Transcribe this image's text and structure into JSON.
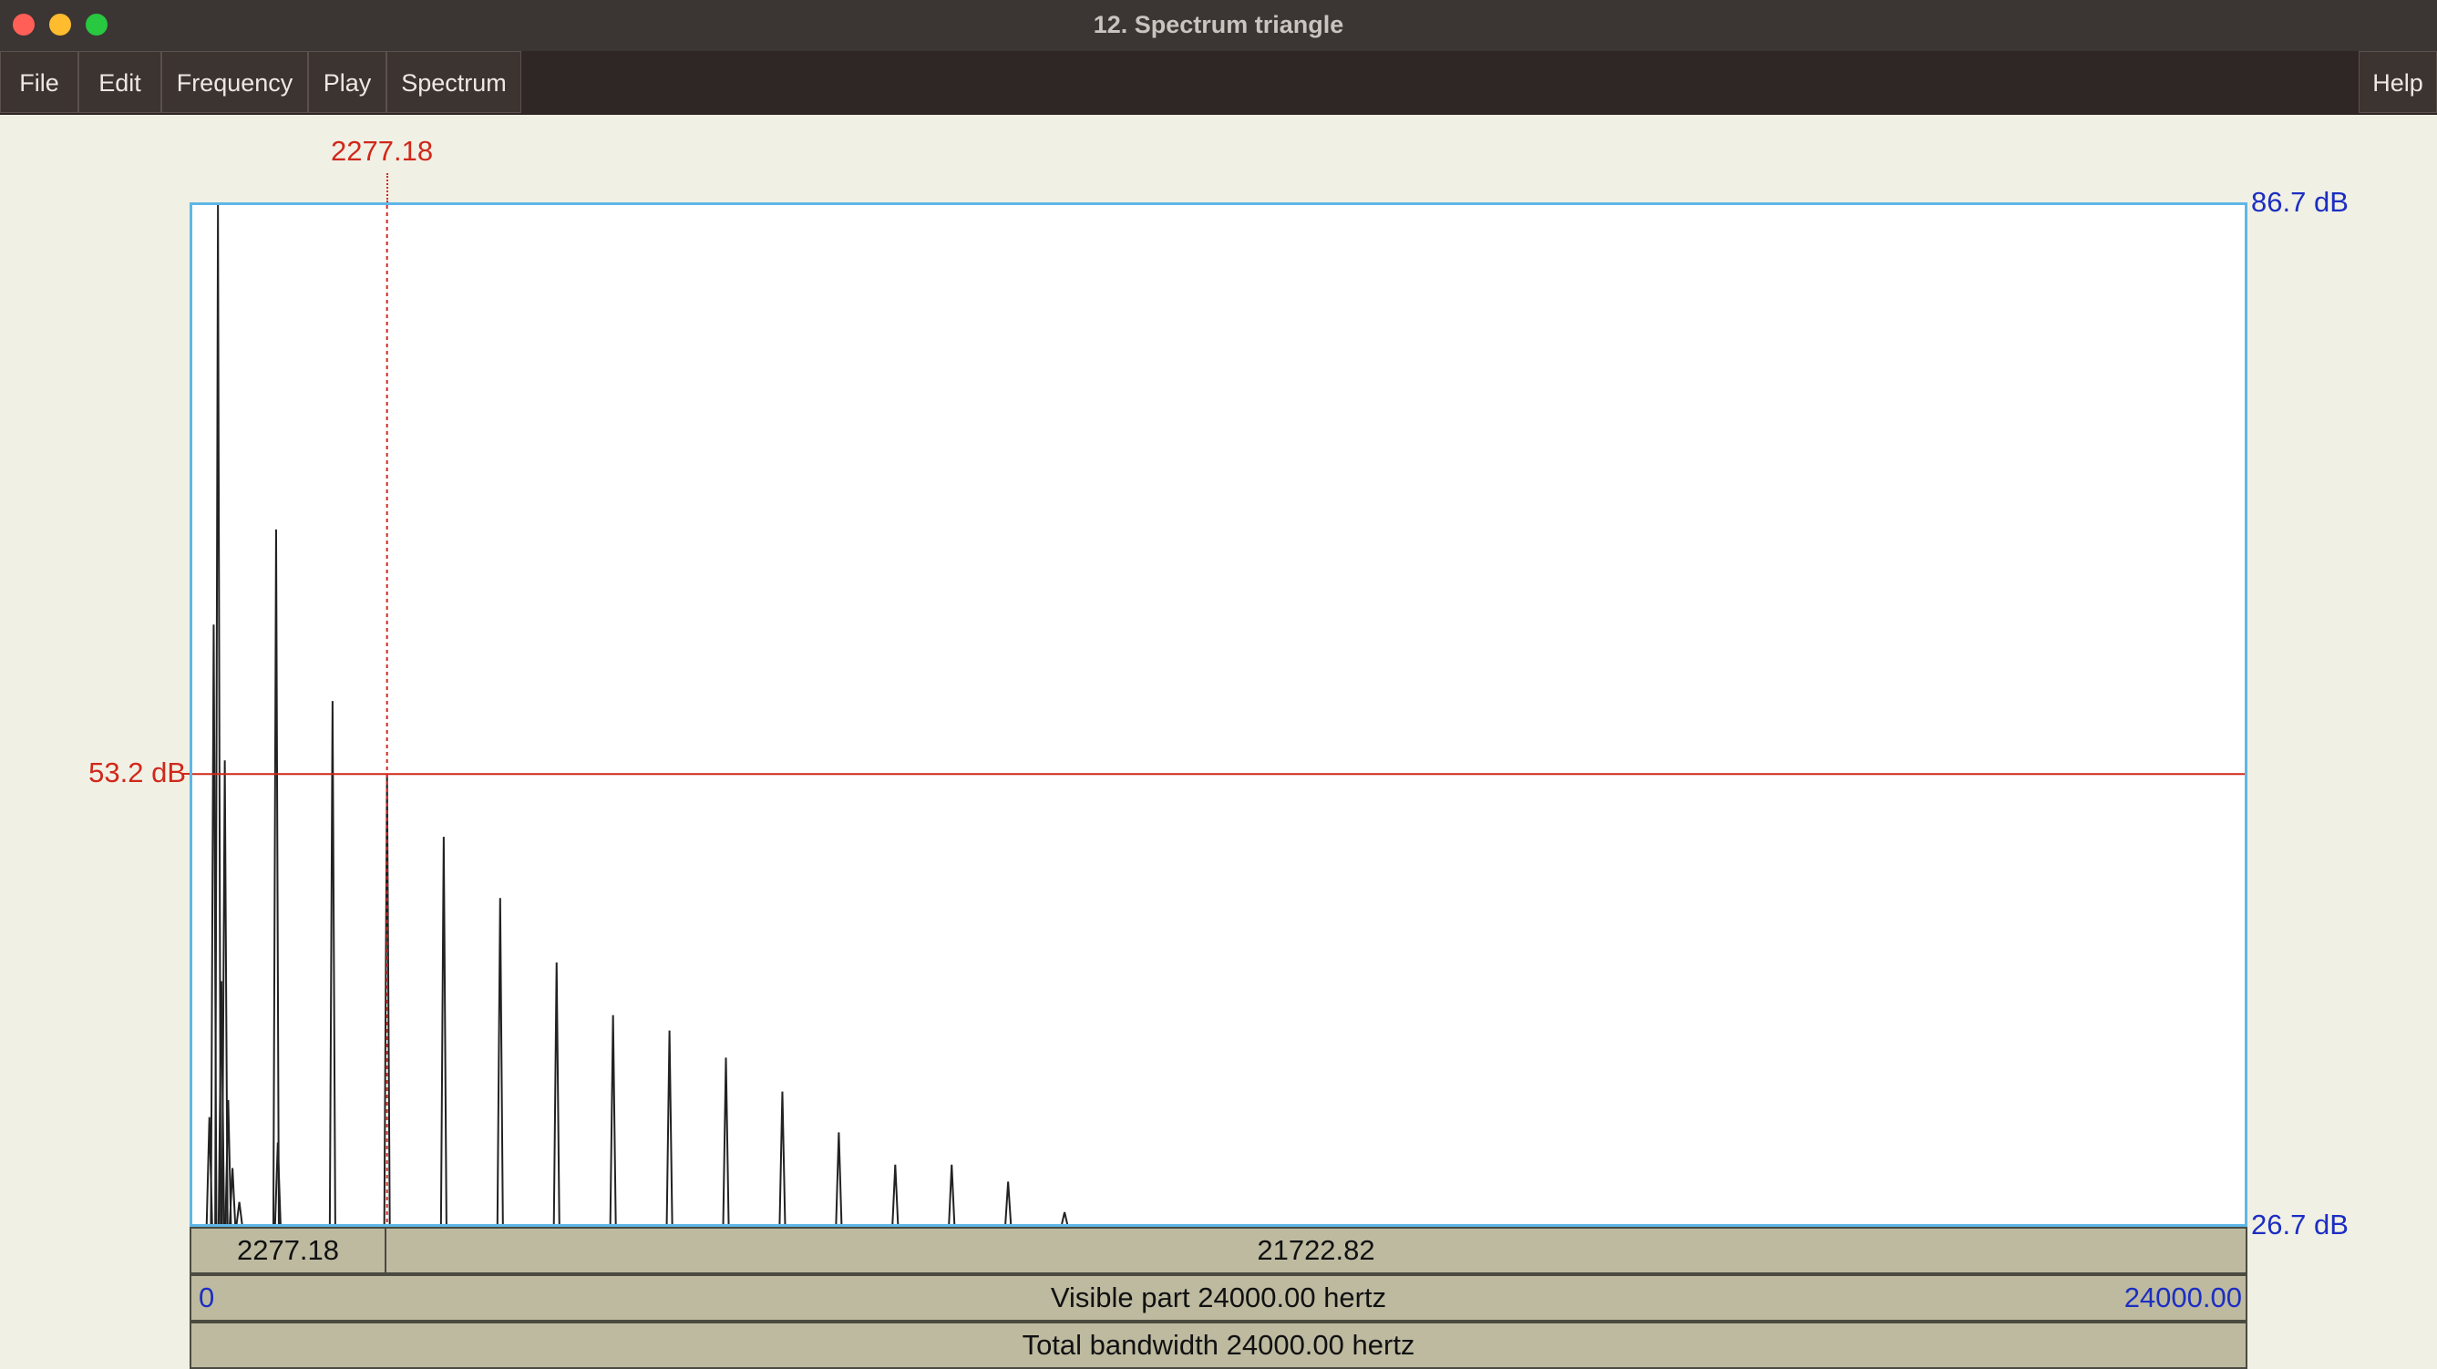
{
  "window": {
    "title": "12. Spectrum triangle"
  },
  "menu": {
    "file": "File",
    "edit": "Edit",
    "frequency": "Frequency",
    "play": "Play",
    "spectrum": "Spectrum",
    "help": "Help"
  },
  "plot": {
    "top_db_label": "86.7 dB",
    "bottom_db_label": "26.7 dB",
    "cursor_db_label": "53.2 dB",
    "cursor_freq_label": "2277.18",
    "selection_left": "2277.18",
    "selection_right": "21722.82",
    "visible_start": "0",
    "visible_end": "24000.00",
    "visible_text": "Visible part 24000.00 hertz",
    "total_text": "Total bandwidth 24000.00 hertz"
  },
  "colors": {
    "frame": "#5fb6e6",
    "cursor": "#d0281b",
    "axis_text": "#1c2ec2",
    "spectrum": "#222222"
  },
  "chart_data": {
    "type": "line",
    "xlabel": "",
    "ylabel": "",
    "xlim": [
      0,
      24000
    ],
    "ylim": [
      26.7,
      86.7
    ],
    "cursor": {
      "x": 2277.18,
      "y": 53.2
    },
    "peaks": [
      {
        "x": 200,
        "y": 33
      },
      {
        "x": 250,
        "y": 62
      },
      {
        "x": 300,
        "y": 86.7
      },
      {
        "x": 340,
        "y": 41
      },
      {
        "x": 380,
        "y": 54
      },
      {
        "x": 420,
        "y": 34
      },
      {
        "x": 470,
        "y": 30
      },
      {
        "x": 550,
        "y": 28
      },
      {
        "x": 980,
        "y": 67.6
      },
      {
        "x": 1000,
        "y": 31.5
      },
      {
        "x": 1640,
        "y": 57.5
      },
      {
        "x": 2277.18,
        "y": 53.2
      },
      {
        "x": 2940,
        "y": 49.5
      },
      {
        "x": 3600,
        "y": 45.9
      },
      {
        "x": 4260,
        "y": 42.1
      },
      {
        "x": 4920,
        "y": 39
      },
      {
        "x": 5580,
        "y": 38.1
      },
      {
        "x": 6240,
        "y": 36.5
      },
      {
        "x": 6900,
        "y": 34.5
      },
      {
        "x": 7560,
        "y": 32.1
      },
      {
        "x": 8220,
        "y": 30.2
      },
      {
        "x": 8880,
        "y": 30.2
      },
      {
        "x": 9540,
        "y": 29.2
      },
      {
        "x": 10200,
        "y": 27.4
      }
    ]
  }
}
